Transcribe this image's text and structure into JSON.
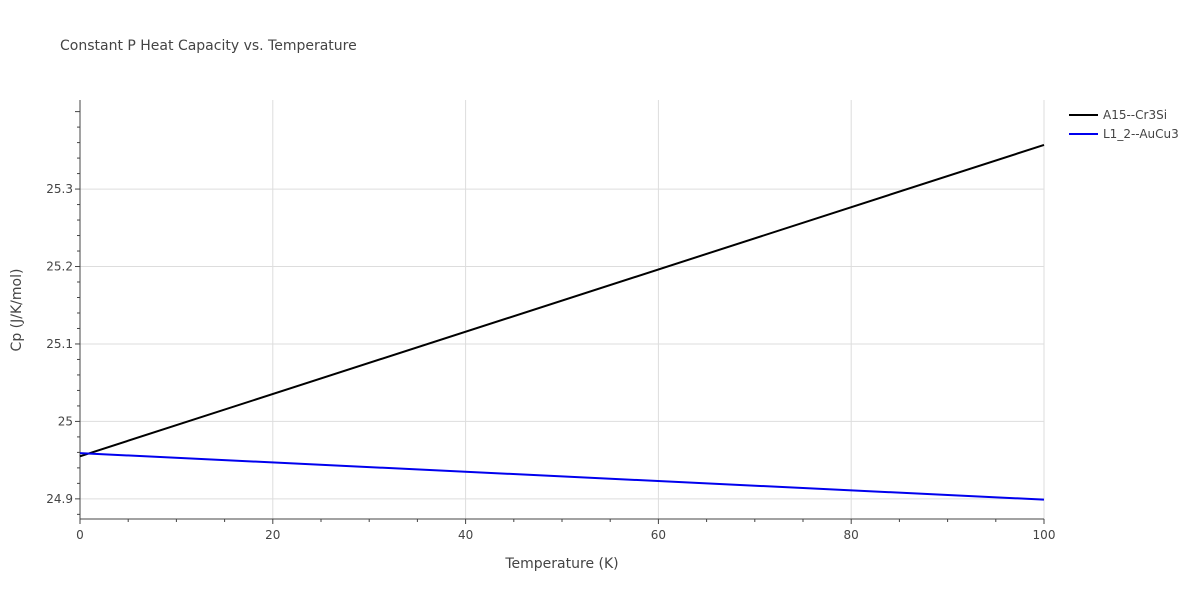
{
  "chart_data": {
    "type": "line",
    "title": "Constant P Heat Capacity vs. Temperature",
    "xlabel": "Temperature (K)",
    "ylabel": "Cp (J/K/mol)",
    "xlim": [
      0,
      100
    ],
    "ylim": [
      24.874,
      25.415
    ],
    "x_ticks": [
      0,
      20,
      40,
      60,
      80,
      100
    ],
    "x_tick_labels": [
      "0",
      "20",
      "40",
      "60",
      "80",
      "100"
    ],
    "y_ticks": [
      24.9,
      25.0,
      25.1,
      25.2,
      25.3
    ],
    "y_tick_labels": [
      "24.9",
      "25",
      "25.1",
      "25.2",
      "25.3"
    ],
    "grid": true,
    "legend_position": "top-right",
    "series": [
      {
        "name": "A15--Cr3Si",
        "color": "#000000",
        "x": [
          0,
          100
        ],
        "y": [
          24.955,
          25.357
        ]
      },
      {
        "name": "L1_2--AuCu3",
        "color": "#0000ee",
        "x": [
          0,
          100
        ],
        "y": [
          24.959,
          24.899
        ]
      }
    ]
  }
}
